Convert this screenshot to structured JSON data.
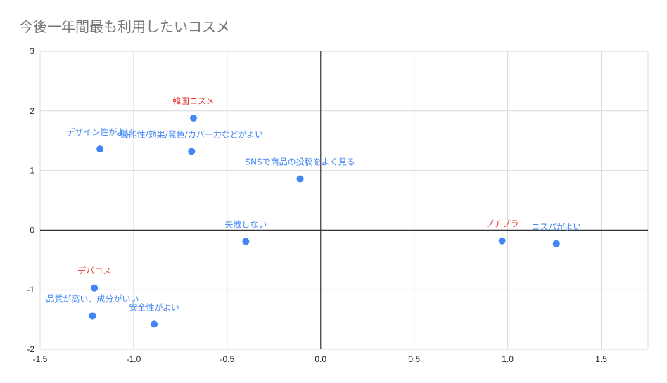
{
  "chart_data": {
    "type": "scatter",
    "title": "今後一年間最も利用したいコスメ",
    "xlabel": "",
    "ylabel": "",
    "xlim": [
      -1.5,
      1.75
    ],
    "ylim": [
      -2,
      3
    ],
    "x_ticks": [
      "-1.5",
      "-1.0",
      "-0.5",
      "0.0",
      "0.5",
      "1.0",
      "1.5"
    ],
    "y_ticks": [
      "-2",
      "-1",
      "0",
      "1",
      "2",
      "3"
    ],
    "x_tick_values": [
      -1.5,
      -1.0,
      -0.5,
      0.0,
      0.5,
      1.0,
      1.5
    ],
    "y_tick_values": [
      -2,
      -1,
      0,
      1,
      2,
      3
    ],
    "grid": true,
    "point_color": "#4285f4",
    "colors": {
      "blue_label": "#4285f4",
      "red_label": "#e53935",
      "axis": "#333333",
      "grid": "#d9d9d9"
    },
    "points": [
      {
        "label": "韓国コスメ",
        "x": -0.68,
        "y": 1.88,
        "label_color": "red"
      },
      {
        "label": "デザイン性がよい",
        "x": -1.18,
        "y": 1.36,
        "label_color": "blue"
      },
      {
        "label": "機能性/効果/発色/カバー力などがよい",
        "x": -0.69,
        "y": 1.32,
        "label_color": "blue"
      },
      {
        "label": "SNSで商品の投稿をよく見る",
        "x": -0.11,
        "y": 0.86,
        "label_color": "blue"
      },
      {
        "label": "失敗しない",
        "x": -0.4,
        "y": -0.19,
        "label_color": "blue"
      },
      {
        "label": "プチプラ",
        "x": 0.97,
        "y": -0.18,
        "label_color": "red"
      },
      {
        "label": "コスパがよい",
        "x": 1.26,
        "y": -0.23,
        "label_color": "blue"
      },
      {
        "label": "デパコス",
        "x": -1.21,
        "y": -0.97,
        "label_color": "red"
      },
      {
        "label": "品質が高い、成分がいい",
        "x": -1.22,
        "y": -1.44,
        "label_color": "blue"
      },
      {
        "label": "安全性がよい",
        "x": -0.89,
        "y": -1.58,
        "label_color": "blue"
      }
    ]
  }
}
